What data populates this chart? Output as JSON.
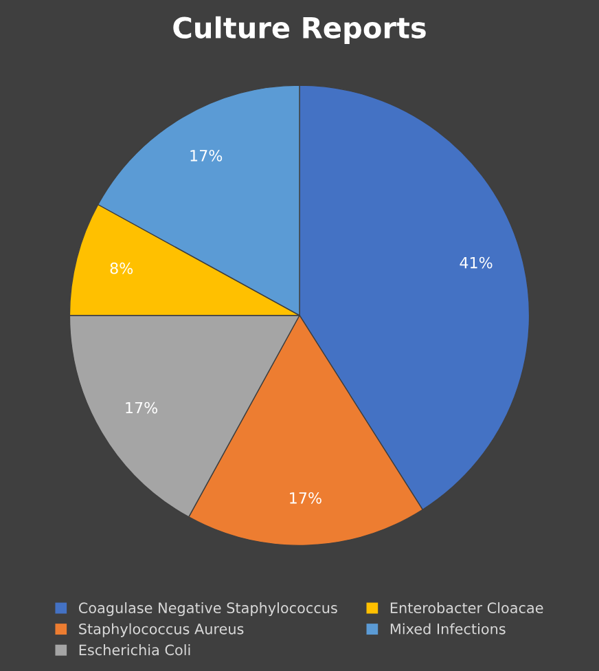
{
  "chart_data": {
    "type": "pie",
    "title": "Culture Reports",
    "categories": [
      "Coagulase Negative Staphylococcus",
      "Staphylococcus Aureus",
      "Escherichia Coli",
      "Enterobacter Cloacae",
      "Mixed Infections"
    ],
    "values": [
      41,
      17,
      17,
      8,
      17
    ],
    "colors": [
      "#4472c4",
      "#ed7d31",
      "#a5a5a5",
      "#ffc000",
      "#5b9bd5"
    ],
    "value_labels": [
      "41%",
      "17%",
      "17%",
      "8%",
      "17%"
    ],
    "legend": "bottom"
  }
}
